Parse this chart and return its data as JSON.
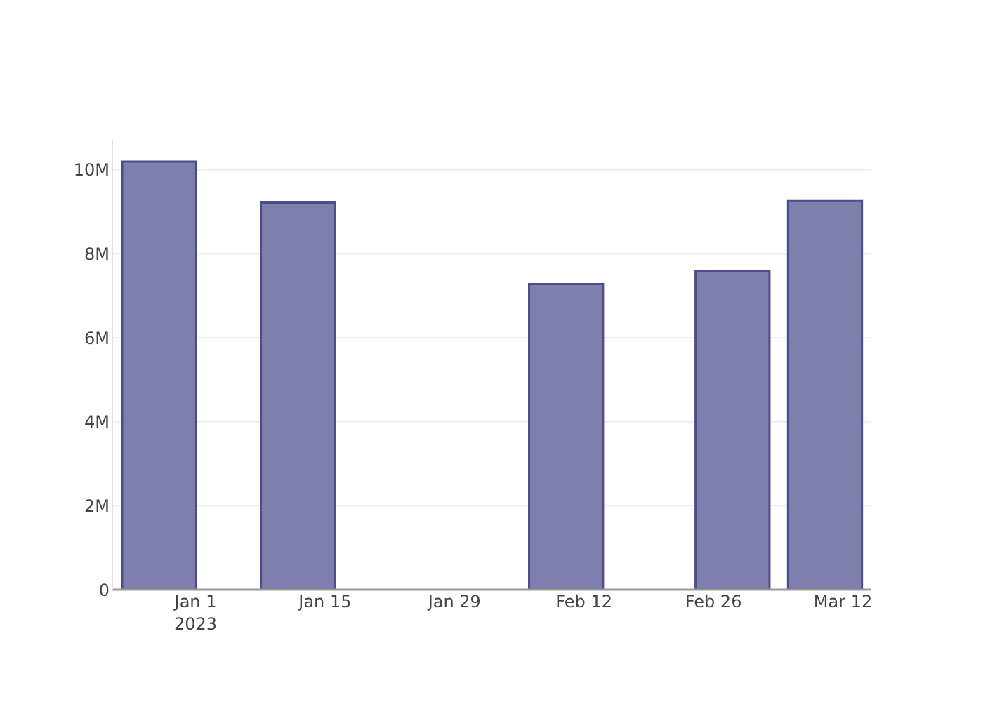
{
  "chart_data": {
    "type": "bar",
    "x": [
      "2022-12-28",
      "2023-01-12",
      "2023-02-10",
      "2023-02-28",
      "2023-03-10"
    ],
    "values": [
      10200000,
      9220000,
      7280000,
      7590000,
      9260000
    ],
    "color": "#7f7fae",
    "xlim": [
      "2022-12-23",
      "2023-03-15"
    ],
    "xticks": [
      {
        "value": "2023-01-01",
        "label": "Jan 1\n2023"
      },
      {
        "value": "2023-01-15",
        "label": "Jan 15"
      },
      {
        "value": "2023-01-29",
        "label": "Jan 29"
      },
      {
        "value": "2023-02-12",
        "label": "Feb 12"
      },
      {
        "value": "2023-02-26",
        "label": "Feb 26"
      },
      {
        "value": "2023-03-12",
        "label": "Mar 12"
      }
    ],
    "ylim": [
      0,
      10700000
    ],
    "yticks": [
      0,
      {
        "value": 2000000,
        "label": "2M"
      },
      {
        "value": 4000000,
        "label": "4M"
      },
      {
        "value": 6000000,
        "label": "6M"
      },
      {
        "value": 8000000,
        "label": "8M"
      },
      {
        "value": 10000000,
        "label": "10M"
      }
    ],
    "grid": "y"
  }
}
